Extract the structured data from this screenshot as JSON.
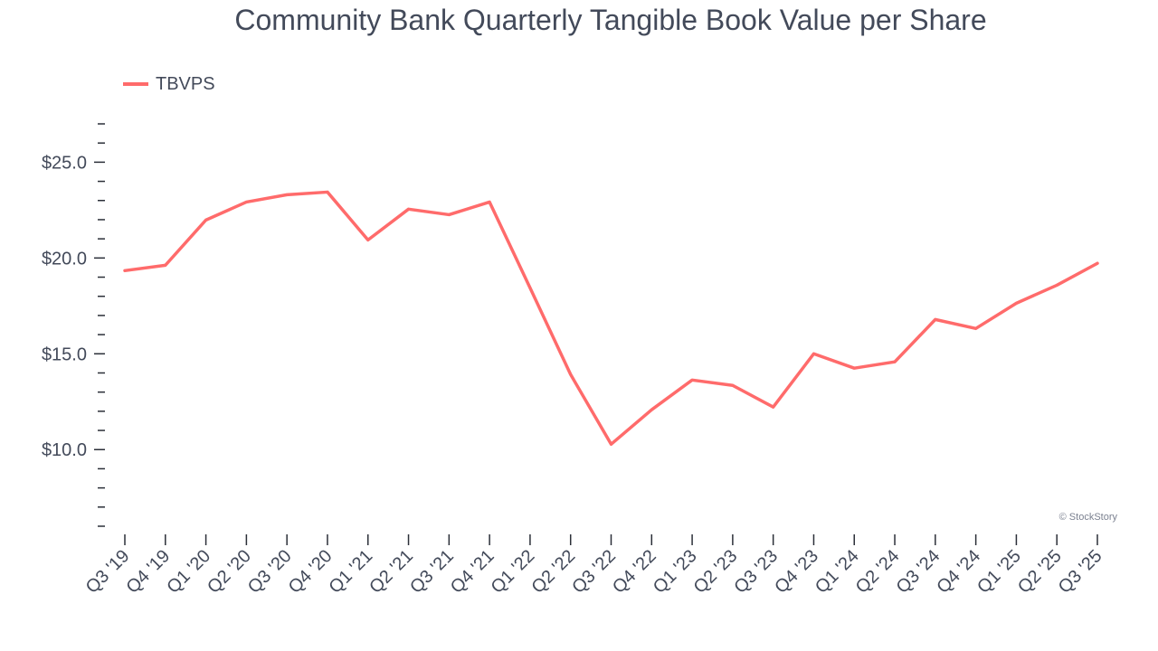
{
  "chart_data": {
    "type": "line",
    "title": "Community Bank Quarterly Tangible Book Value per Share",
    "xlabel": "",
    "ylabel": "",
    "categories": [
      "Q3 '19",
      "Q4 '19",
      "Q1 '20",
      "Q2 '20",
      "Q3 '20",
      "Q4 '20",
      "Q1 '21",
      "Q2 '21",
      "Q3 '21",
      "Q4 '21",
      "Q1 '22",
      "Q2 '22",
      "Q3 '22",
      "Q4 '22",
      "Q1 '23",
      "Q2 '23",
      "Q3 '23",
      "Q4 '23",
      "Q1 '24",
      "Q2 '24",
      "Q3 '24",
      "Q4 '24",
      "Q1 '25",
      "Q2 '25",
      "Q3 '25"
    ],
    "series": [
      {
        "name": "TBVPS",
        "color": "#ff6b6b",
        "values": [
          19.34,
          19.62,
          21.98,
          22.92,
          23.3,
          23.44,
          20.94,
          22.55,
          22.26,
          22.92,
          18.44,
          13.92,
          10.28,
          12.08,
          13.63,
          13.35,
          12.22,
          15.0,
          14.25,
          14.58,
          16.79,
          16.32,
          17.64,
          18.58,
          19.72
        ]
      }
    ],
    "ylim": [
      6,
      27
    ],
    "yticks": [
      10,
      15,
      20,
      25
    ],
    "ytick_labels": [
      "$10.0",
      "$15.0",
      "$20.0",
      "$25.0"
    ],
    "legend_position": "top-left",
    "grid": false
  },
  "credit": "© StockStory"
}
